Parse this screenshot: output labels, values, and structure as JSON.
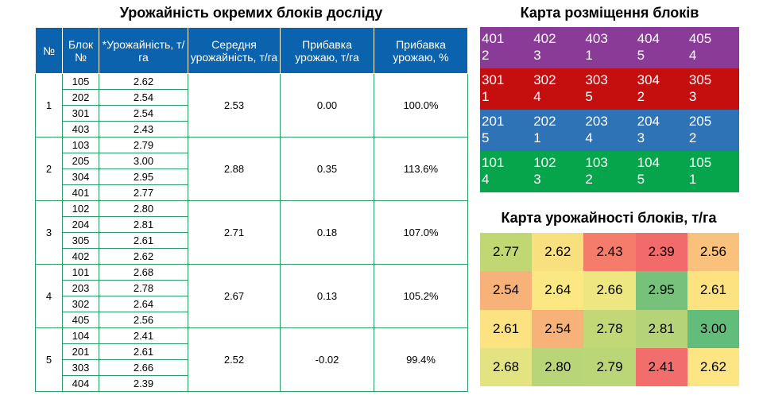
{
  "table_title": "Урожайність окремих блоків досліду",
  "table": {
    "headers": [
      "№",
      "Блок №",
      "*Урожайність, т/га",
      "Середня урожайність, т/га",
      "Прибавка урожаю, т/га",
      "Прибавка урожаю, %"
    ],
    "groups": [
      {
        "num": "1",
        "avg": "2.53",
        "gain": "0.00",
        "gain_pct": "100.0%",
        "blocks": [
          {
            "block": "105",
            "yield": "2.62"
          },
          {
            "block": "202",
            "yield": "2.54"
          },
          {
            "block": "301",
            "yield": "2.54"
          },
          {
            "block": "403",
            "yield": "2.43"
          }
        ]
      },
      {
        "num": "2",
        "avg": "2.88",
        "gain": "0.35",
        "gain_pct": "113.6%",
        "blocks": [
          {
            "block": "103",
            "yield": "2.79"
          },
          {
            "block": "205",
            "yield": "3.00"
          },
          {
            "block": "304",
            "yield": "2.95"
          },
          {
            "block": "401",
            "yield": "2.77"
          }
        ]
      },
      {
        "num": "3",
        "avg": "2.71",
        "gain": "0.18",
        "gain_pct": "107.0%",
        "blocks": [
          {
            "block": "102",
            "yield": "2.80"
          },
          {
            "block": "204",
            "yield": "2.81"
          },
          {
            "block": "305",
            "yield": "2.61"
          },
          {
            "block": "402",
            "yield": "2.62"
          }
        ]
      },
      {
        "num": "4",
        "avg": "2.67",
        "gain": "0.13",
        "gain_pct": "105.2%",
        "blocks": [
          {
            "block": "101",
            "yield": "2.68"
          },
          {
            "block": "203",
            "yield": "2.78"
          },
          {
            "block": "302",
            "yield": "2.64"
          },
          {
            "block": "405",
            "yield": "2.56"
          }
        ]
      },
      {
        "num": "5",
        "avg": "2.52",
        "gain": "-0.02",
        "gain_pct": "99.4%",
        "blocks": [
          {
            "block": "104",
            "yield": "2.41"
          },
          {
            "block": "201",
            "yield": "2.61"
          },
          {
            "block": "303",
            "yield": "2.66"
          },
          {
            "block": "404",
            "yield": "2.39"
          }
        ]
      }
    ]
  },
  "placement_map": {
    "title": "Карта розміщення блоків",
    "rows": [
      {
        "color": "#8a3b97",
        "cells": [
          {
            "block": "401",
            "variant": "2"
          },
          {
            "block": "402",
            "variant": "3"
          },
          {
            "block": "403",
            "variant": "1"
          },
          {
            "block": "404",
            "variant": "5"
          },
          {
            "block": "405",
            "variant": "4"
          }
        ]
      },
      {
        "color": "#c50f0f",
        "cells": [
          {
            "block": "301",
            "variant": "1"
          },
          {
            "block": "302",
            "variant": "4"
          },
          {
            "block": "303",
            "variant": "5"
          },
          {
            "block": "304",
            "variant": "2"
          },
          {
            "block": "305",
            "variant": "3"
          }
        ]
      },
      {
        "color": "#2f73b7",
        "cells": [
          {
            "block": "201",
            "variant": "5"
          },
          {
            "block": "202",
            "variant": "1"
          },
          {
            "block": "203",
            "variant": "4"
          },
          {
            "block": "204",
            "variant": "3"
          },
          {
            "block": "205",
            "variant": "2"
          }
        ]
      },
      {
        "color": "#06a54b",
        "cells": [
          {
            "block": "101",
            "variant": "4"
          },
          {
            "block": "102",
            "variant": "3"
          },
          {
            "block": "103",
            "variant": "2"
          },
          {
            "block": "104",
            "variant": "5"
          },
          {
            "block": "105",
            "variant": "1"
          }
        ]
      }
    ]
  },
  "heatmap": {
    "title": "Карта урожайності блоків, т/га",
    "rows": [
      [
        {
          "value": "2.77",
          "color": "#c0d774"
        },
        {
          "value": "2.62",
          "color": "#f8e07f"
        },
        {
          "value": "2.43",
          "color": "#f57c6b"
        },
        {
          "value": "2.39",
          "color": "#f26b6b"
        },
        {
          "value": "2.56",
          "color": "#f9c17c"
        }
      ],
      [
        {
          "value": "2.54",
          "color": "#f7b27a"
        },
        {
          "value": "2.64",
          "color": "#fce882"
        },
        {
          "value": "2.66",
          "color": "#eee680"
        },
        {
          "value": "2.95",
          "color": "#77c27a"
        },
        {
          "value": "2.61",
          "color": "#fde282"
        }
      ],
      [
        {
          "value": "2.61",
          "color": "#fde282"
        },
        {
          "value": "2.54",
          "color": "#f7b27a"
        },
        {
          "value": "2.78",
          "color": "#c2d877"
        },
        {
          "value": "2.81",
          "color": "#b5d477"
        },
        {
          "value": "3.00",
          "color": "#62bd7b"
        }
      ],
      [
        {
          "value": "2.68",
          "color": "#e3e381"
        },
        {
          "value": "2.80",
          "color": "#b8d577"
        },
        {
          "value": "2.79",
          "color": "#bbd677"
        },
        {
          "value": "2.41",
          "color": "#f26e6c"
        },
        {
          "value": "2.62",
          "color": "#fde583"
        }
      ]
    ]
  }
}
